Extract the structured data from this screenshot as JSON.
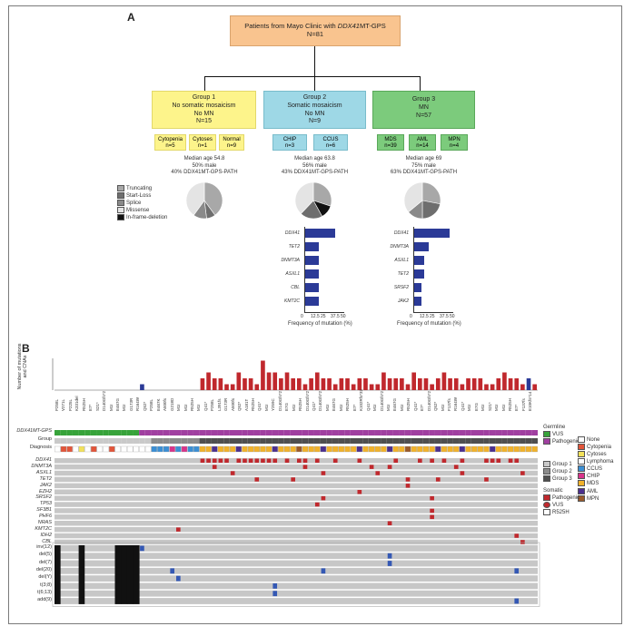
{
  "panel_a": {
    "letter": "A",
    "top": {
      "title_pre": "Patients from Mayo Clinic with ",
      "title_gene": "DDX41",
      "title_post": "MT-GPS",
      "n": "N=81"
    },
    "groups": [
      {
        "name": "Group 1",
        "desc1": "No somatic mosaicism",
        "desc2": "No MN",
        "n": "N=15",
        "subs": [
          {
            "label": "Cytopenia",
            "n": "n=5"
          },
          {
            "label": "Cytoses",
            "n": "n=1"
          },
          {
            "label": "Normal",
            "n": "n=9"
          }
        ],
        "stats": [
          "Median age 54.8",
          "50% male",
          "40% DDX41MT-GPS-PATH"
        ]
      },
      {
        "name": "Group 2",
        "desc1": "Somatic mosaicism",
        "desc2": "No MN",
        "n": "N=9",
        "subs": [
          {
            "label": "CHIP",
            "n": "n=3"
          },
          {
            "label": "CCUS",
            "n": "n=6"
          }
        ],
        "stats": [
          "Median age 63.8",
          "56% male",
          "43% DDX41MT-GPS-PATH"
        ]
      },
      {
        "name": "Group 3",
        "desc1": "MN",
        "desc2": "",
        "n": "N=57",
        "subs": [
          {
            "label": "MDS",
            "n": "n=39"
          },
          {
            "label": "AML",
            "n": "n=14"
          },
          {
            "label": "MPN",
            "n": "n=4"
          }
        ],
        "stats": [
          "Median age 69",
          "75% male",
          "63% DDX41MT-GPS-PATH"
        ]
      }
    ],
    "pie_legend": [
      {
        "label": "Truncating",
        "color": "#a8a8a8"
      },
      {
        "label": "Start-Loss",
        "color": "#6e6e6e"
      },
      {
        "label": "Splice",
        "color": "#8a8a8a"
      },
      {
        "label": "Missense",
        "color": "#e4e4e4"
      },
      {
        "label": "In-frame-deletion",
        "color": "#111111"
      }
    ],
    "pies": [
      [
        {
          "value": 40,
          "color": "#a8a8a8"
        },
        {
          "value": 8,
          "color": "#6e6e6e"
        },
        {
          "value": 12,
          "color": "#8a8a8a"
        },
        {
          "value": 40,
          "color": "#e4e4e4"
        }
      ],
      [
        {
          "value": 30,
          "color": "#a8a8a8"
        },
        {
          "value": 12,
          "color": "#111111"
        },
        {
          "value": 20,
          "color": "#6e6e6e"
        },
        {
          "value": 38,
          "color": "#e4e4e4"
        }
      ],
      [
        {
          "value": 28,
          "color": "#a8a8a8"
        },
        {
          "value": 22,
          "color": "#6e6e6e"
        },
        {
          "value": 14,
          "color": "#8a8a8a"
        },
        {
          "value": 36,
          "color": "#e4e4e4"
        }
      ]
    ],
    "bar_charts": [
      {
        "genes": [
          "DDX41",
          "TET2",
          "DNMT3A",
          "ASXL1",
          "CBL",
          "KMT2C"
        ],
        "values": [
          38,
          17,
          17,
          17,
          17,
          17
        ],
        "ticks": [
          "0",
          "12.5",
          "25",
          "37.5",
          "50"
        ],
        "xlabel": "Frequency of mutation (%)"
      },
      {
        "genes": [
          "DDX41",
          "DNMT3A",
          "ASXL1",
          "TET2",
          "SRSF2",
          "JAK2"
        ],
        "values": [
          44,
          18,
          12,
          12,
          9,
          9
        ],
        "ticks": [
          "0",
          "12.5",
          "25",
          "37.5",
          "50"
        ],
        "xlabel": "Frequency of mutation (%)"
      }
    ]
  },
  "panel_b": {
    "letter": "B",
    "y_title": "Number of mutations and CNAs",
    "germline_label": "DDX41MT-GPS",
    "group_label": "Group",
    "diagnosis_label": "Diagnosis",
    "genes": [
      "DDX41",
      "DNMT3A",
      "ASXL1",
      "TET2",
      "JAK2",
      "EZH2",
      "SRSF2",
      "TP53",
      "SF3B1",
      "PHF6",
      "NRAS",
      "KMT2C",
      "IDH2",
      "CBL"
    ],
    "cnas": [
      "inv(12)",
      "del(5)",
      "del(7)",
      "del(20)",
      "del(Y)",
      "t(3;8)",
      "t(6;13)",
      "add(9)"
    ],
    "legend_germline": {
      "title": "Germline",
      "items": [
        {
          "label": "VUS",
          "color": "#37a33a"
        },
        {
          "label": "Pathogenic",
          "color": "#a03fa0"
        }
      ]
    },
    "legend_diag": {
      "items": [
        {
          "label": "None",
          "color": "#ffffff"
        },
        {
          "label": "Cytopenia",
          "color": "#e2553a"
        },
        {
          "label": "Cytoses",
          "color": "#f2e15a"
        },
        {
          "label": "Lymphoma",
          "color": "#ffffff"
        },
        {
          "label": "CCUS",
          "color": "#3b8fd4"
        },
        {
          "label": "CHIP",
          "color": "#d8348a"
        },
        {
          "label": "MDS",
          "color": "#f1b22b"
        },
        {
          "label": "AML",
          "color": "#4b2f8f"
        },
        {
          "label": "MPN",
          "color": "#9a5a2a"
        }
      ]
    },
    "legend_group": {
      "items": [
        {
          "label": "Group 1",
          "color": "#c9c9c9"
        },
        {
          "label": "Group 2",
          "color": "#8c8c8c"
        },
        {
          "label": "Group 3",
          "color": "#4f4f4f"
        }
      ]
    },
    "legend_somatic": {
      "title": "Somatic",
      "items": [
        {
          "label": "Pathogenic",
          "color": "#c0282d"
        },
        {
          "label": "VUS",
          "color": "#c0282d"
        },
        {
          "label": "R525H",
          "color": "#ffffff"
        }
      ]
    },
    "variants": [
      "P258L",
      "V271L",
      "P225L",
      "K331del",
      "R525H",
      "E7*",
      "S21*",
      "D140Gfs*2",
      "M1I",
      "E467G",
      "M1I",
      "G173R",
      "R164W",
      "Q52*",
      "P258L",
      "E467K",
      "A500fs",
      "G218D",
      "M1I",
      "M1I",
      "R525H",
      "M1I",
      "Q41*",
      "P258L",
      "L391fs",
      "G173R",
      "A500fs",
      "Q52*",
      "A181T",
      "R525H",
      "Q41*",
      "M1I",
      "Y259C",
      "D140Gfs*2",
      "E7G",
      "M1I",
      "R525H",
      "D140Gfs*2",
      "Q41*",
      "D140Gfs*2",
      "M1I",
      "E467G",
      "M1I",
      "R525H",
      "E7*",
      "K102Rfs*32",
      "Q41*",
      "M1I",
      "D140Gfs*2",
      "M1I",
      "E467G",
      "M1I",
      "R525H",
      "Q41*",
      "E7*",
      "D140Gfs*2",
      "Q52*",
      "M1I",
      "F137fs",
      "R164W",
      "Q41*",
      "M1I",
      "E7G",
      "M1I",
      "S21*",
      "M1I",
      "M1I",
      "R525H",
      "E7*",
      "F137fs",
      "E10Kfs*14"
    ]
  }
}
